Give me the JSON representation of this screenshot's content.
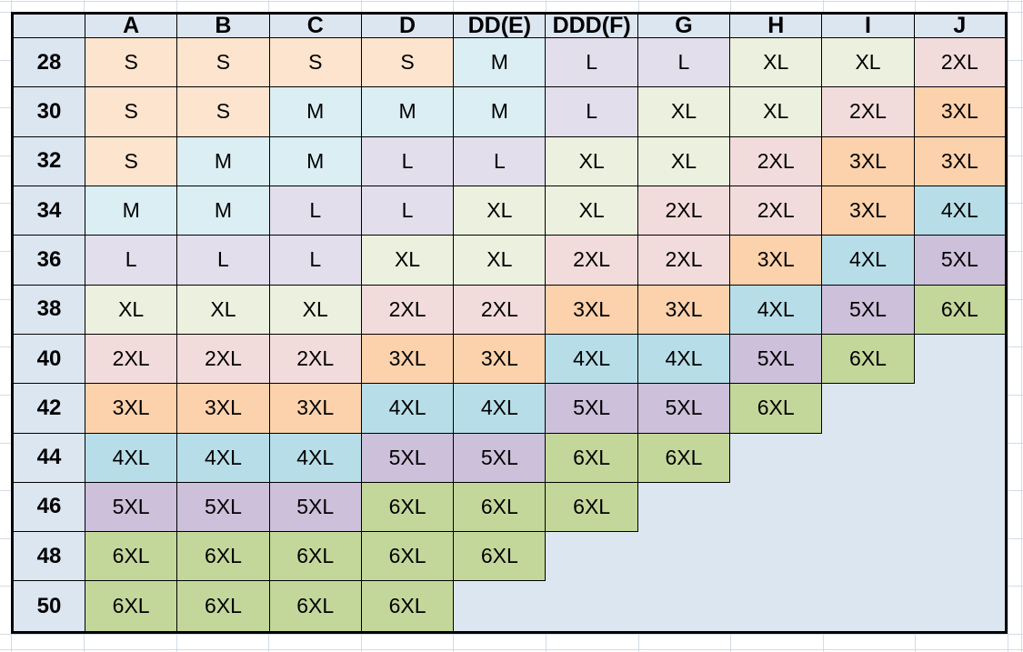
{
  "chart_data": {
    "type": "table",
    "title": "",
    "corner_label": "",
    "columns": [
      "A",
      "B",
      "C",
      "D",
      "DD(E)",
      "DDD(F)",
      "G",
      "H",
      "I",
      "J"
    ],
    "rows": [
      {
        "band": "28",
        "cells": [
          "S",
          "S",
          "S",
          "S",
          "M",
          "L",
          "L",
          "XL",
          "XL",
          "2XL"
        ]
      },
      {
        "band": "30",
        "cells": [
          "S",
          "S",
          "M",
          "M",
          "M",
          "L",
          "XL",
          "XL",
          "2XL",
          "3XL"
        ]
      },
      {
        "band": "32",
        "cells": [
          "S",
          "M",
          "M",
          "L",
          "L",
          "XL",
          "XL",
          "2XL",
          "3XL",
          "3XL"
        ]
      },
      {
        "band": "34",
        "cells": [
          "M",
          "M",
          "L",
          "L",
          "XL",
          "XL",
          "2XL",
          "2XL",
          "3XL",
          "4XL"
        ]
      },
      {
        "band": "36",
        "cells": [
          "L",
          "L",
          "L",
          "XL",
          "XL",
          "2XL",
          "2XL",
          "3XL",
          "4XL",
          "5XL"
        ]
      },
      {
        "band": "38",
        "cells": [
          "XL",
          "XL",
          "XL",
          "2XL",
          "2XL",
          "3XL",
          "3XL",
          "4XL",
          "5XL",
          "6XL"
        ]
      },
      {
        "band": "40",
        "cells": [
          "2XL",
          "2XL",
          "2XL",
          "3XL",
          "3XL",
          "4XL",
          "4XL",
          "5XL",
          "6XL",
          ""
        ]
      },
      {
        "band": "42",
        "cells": [
          "3XL",
          "3XL",
          "3XL",
          "4XL",
          "4XL",
          "5XL",
          "5XL",
          "6XL",
          "",
          ""
        ]
      },
      {
        "band": "44",
        "cells": [
          "4XL",
          "4XL",
          "4XL",
          "5XL",
          "5XL",
          "6XL",
          "6XL",
          "",
          "",
          ""
        ]
      },
      {
        "band": "46",
        "cells": [
          "5XL",
          "5XL",
          "5XL",
          "6XL",
          "6XL",
          "6XL",
          "",
          "",
          "",
          ""
        ]
      },
      {
        "band": "48",
        "cells": [
          "6XL",
          "6XL",
          "6XL",
          "6XL",
          "6XL",
          "",
          "",
          "",
          "",
          ""
        ]
      },
      {
        "band": "50",
        "cells": [
          "6XL",
          "6XL",
          "6XL",
          "6XL",
          "",
          "",
          "",
          "",
          "",
          ""
        ]
      }
    ],
    "size_colors": {
      "S": "#FCE4CF",
      "M": "#DAEEF3",
      "L": "#E2DEEC",
      "XL": "#EBF1DE",
      "2XL": "#F2DCDB",
      "3XL": "#FCD2AC",
      "4XL": "#B7DEE8",
      "5XL": "#CCC0DA",
      "6XL": "#C4D79B"
    },
    "header_fill": "#DCE6F1",
    "empty_fill": "#DCE6F1",
    "border_color": "#000000",
    "gridline_color": "#D3DBE7",
    "legend_position": "none",
    "grid": true
  }
}
